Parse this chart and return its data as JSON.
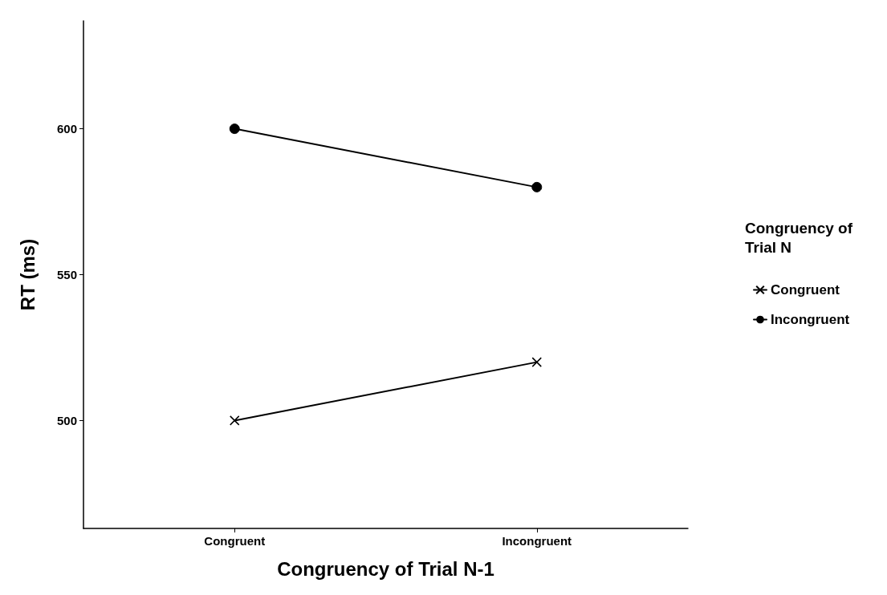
{
  "chart_data": {
    "type": "line",
    "xlabel": "Congruency of Trial N-1",
    "ylabel": "RT (ms)",
    "legend_title": "Congruency of Trial N",
    "categories": [
      "Congruent",
      "Incongruent"
    ],
    "series": [
      {
        "name": "Congruent",
        "color": "#000000",
        "marker": "cross",
        "values": [
          500,
          520
        ]
      },
      {
        "name": "Incongruent",
        "color": "#000000",
        "marker": "circle",
        "values": [
          600,
          580
        ]
      }
    ],
    "ylim": [
      463,
      637
    ],
    "yticks": [
      500,
      550,
      600
    ],
    "grid": false,
    "legend": "right",
    "line_style": "solid"
  }
}
